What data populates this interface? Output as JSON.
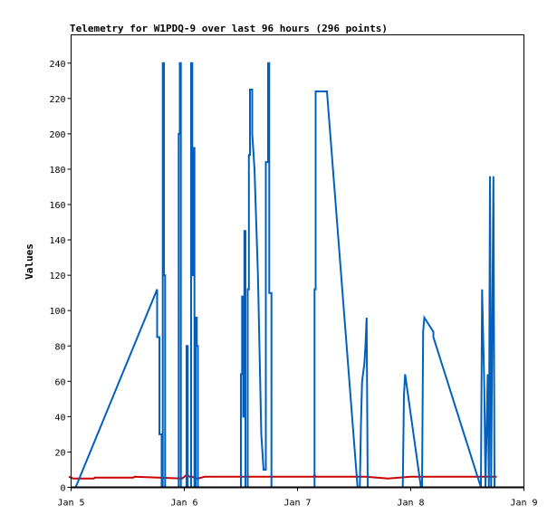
{
  "chart_data": {
    "type": "line",
    "title": "Telemetry for W1PDQ-9 over last 96 hours (296 points)",
    "xlabel": "",
    "ylabel": "Values",
    "x_ticks": [
      "Jan 5",
      "Jan 6",
      "Jan 7",
      "Jan 8",
      "Jan 9"
    ],
    "xlim": [
      5.0,
      9.0
    ],
    "ylim": [
      0,
      256
    ],
    "y_ticks": [
      0,
      20,
      40,
      60,
      80,
      100,
      120,
      140,
      160,
      180,
      200,
      220,
      240
    ],
    "grid": false,
    "series": [
      {
        "color": "#cc0000",
        "x": [
          4.98,
          5.02,
          5.2,
          5.21,
          5.55,
          5.56,
          5.98,
          6.0,
          6.02,
          6.05,
          6.07,
          6.1,
          6.12,
          6.18,
          6.2,
          6.5,
          6.7,
          7.0,
          7.14,
          7.15,
          7.16,
          7.6,
          7.8,
          8.0,
          8.2,
          8.4,
          8.6,
          8.7,
          8.76
        ],
        "values": [
          6,
          5,
          5,
          5.5,
          5.5,
          6,
          5,
          6,
          7,
          6,
          6,
          5,
          5,
          6,
          6,
          6,
          6,
          6,
          6,
          7,
          6,
          6,
          5,
          6,
          6,
          6,
          6,
          6,
          6
        ]
      },
      {
        "color": "#0060c0",
        "x": [
          5.04,
          5.76,
          5.76,
          5.78,
          5.78,
          5.8,
          5.8,
          5.81,
          5.81,
          5.82,
          5.82,
          5.83,
          5.83,
          5.84,
          5.84,
          5.95,
          5.95,
          5.96,
          5.96,
          5.97,
          5.97,
          6.02,
          6.02,
          6.03,
          6.03,
          6.04,
          6.04,
          6.06,
          6.06,
          6.07,
          6.07,
          6.08,
          6.08,
          6.09,
          6.09,
          6.1,
          6.1,
          6.11,
          6.11,
          6.12,
          6.12,
          6.5,
          6.5,
          6.51,
          6.51,
          6.52,
          6.52,
          6.53,
          6.53,
          6.54,
          6.54,
          6.56,
          6.56,
          6.57,
          6.57,
          6.58,
          6.58,
          6.6,
          6.6,
          6.62,
          6.65,
          6.68,
          6.7,
          6.72,
          6.72,
          6.74,
          6.74,
          6.75,
          6.75,
          6.77,
          6.77,
          6.79,
          6.79,
          7.15,
          7.15,
          7.16,
          7.16,
          7.26,
          7.53,
          7.55,
          7.56,
          7.57,
          7.59,
          7.6,
          7.61,
          7.61,
          7.62,
          7.62,
          7.93,
          7.93,
          7.94,
          7.94,
          7.95,
          7.95,
          8.09,
          8.1,
          8.11,
          8.12,
          8.2,
          8.2,
          8.62,
          8.62,
          8.63,
          8.63,
          8.65,
          8.65,
          8.66,
          8.66,
          8.68,
          8.68,
          8.69,
          8.69,
          8.7,
          8.7,
          8.71,
          8.71,
          8.72,
          8.72,
          8.73,
          8.73,
          8.74,
          8.74,
          8.75
        ],
        "values": [
          0,
          112,
          85,
          85,
          30,
          30,
          0,
          0,
          240,
          240,
          120,
          120,
          0,
          0,
          0,
          0,
          200,
          200,
          240,
          240,
          0,
          0,
          80,
          80,
          0,
          0,
          0,
          0,
          240,
          240,
          120,
          120,
          192,
          192,
          0,
          0,
          96,
          96,
          80,
          80,
          0,
          0,
          64,
          64,
          108,
          108,
          40,
          40,
          145,
          145,
          0,
          0,
          112,
          112,
          188,
          188,
          225,
          225,
          200,
          180,
          120,
          30,
          10,
          10,
          184,
          184,
          240,
          240,
          110,
          110,
          0,
          0,
          0,
          0,
          112,
          112,
          224,
          224,
          0,
          0,
          35,
          60,
          70,
          80,
          96,
          96,
          0,
          0,
          0,
          0,
          52,
          52,
          64,
          64,
          0,
          0,
          88,
          96,
          88,
          85,
          0,
          0,
          112,
          112,
          55,
          55,
          0,
          0,
          64,
          64,
          0,
          0,
          176,
          176,
          0,
          0,
          88,
          88,
          176,
          176,
          0,
          0,
          0
        ]
      },
      {
        "color": "#000000",
        "x": [
          5.0,
          9.0
        ],
        "values": [
          0,
          0
        ]
      }
    ]
  }
}
